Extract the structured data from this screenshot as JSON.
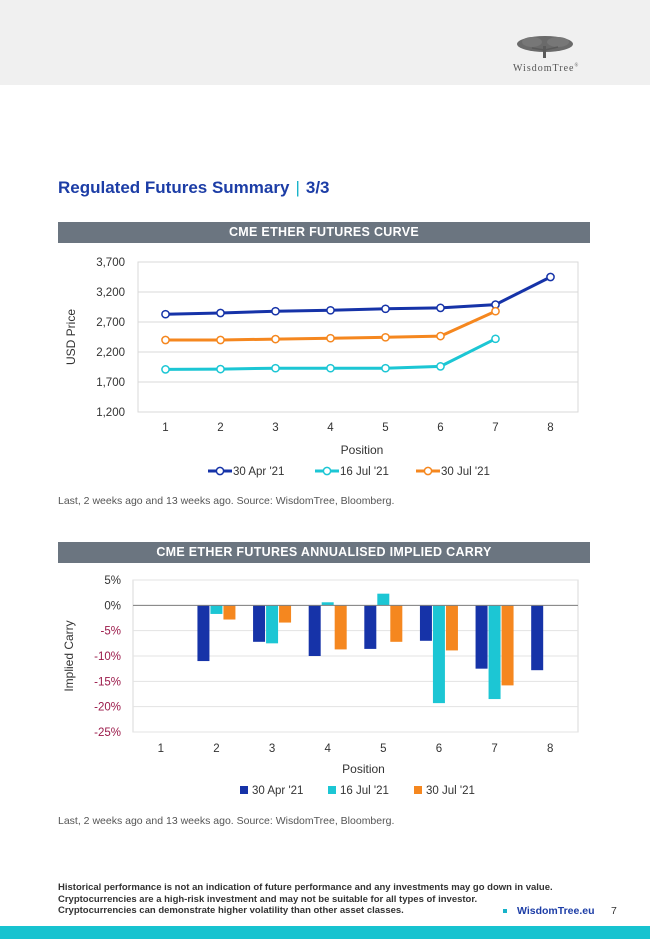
{
  "header": {
    "brand": "WisdomTree",
    "brand_mark": "®"
  },
  "page": {
    "title": "Regulated Futures Summary",
    "title_separator": "|",
    "title_part": "3/3"
  },
  "colors": {
    "series_apr": "#1633a8",
    "series_jul16": "#1cc6d4",
    "series_jul30": "#f5871f",
    "banner": "#6b7580",
    "negative_tick": "#9b1a4a"
  },
  "chart_data": [
    {
      "type": "line",
      "title": "CME ETHER FUTURES CURVE",
      "xlabel": "Position",
      "ylabel": "USD Price",
      "x": [
        1,
        2,
        3,
        4,
        5,
        6,
        7,
        8
      ],
      "ylim": [
        1200,
        3700
      ],
      "yticks": [
        "1,200",
        "1,700",
        "2,200",
        "2,700",
        "3,200",
        "3,700"
      ],
      "ytick_values": [
        1200,
        1700,
        2200,
        2700,
        3200,
        3700
      ],
      "grid": true,
      "legend_position": "bottom",
      "series": [
        {
          "name": "30 Apr '21",
          "color": "#1633a8",
          "values": [
            2830,
            2850,
            2880,
            2895,
            2920,
            2935,
            2990,
            3450
          ]
        },
        {
          "name": "16 Jul '21",
          "color": "#1cc6d4",
          "values": [
            1910,
            1915,
            1930,
            1930,
            1930,
            1960,
            2420,
            null
          ]
        },
        {
          "name": "30 Jul '21",
          "color": "#f5871f",
          "values": [
            2400,
            2400,
            2415,
            2430,
            2445,
            2465,
            2880,
            null
          ]
        }
      ]
    },
    {
      "type": "bar",
      "title": "CME ETHER FUTURES ANNUALISED IMPLIED CARRY",
      "xlabel": "Position",
      "ylabel": "Implied Carry",
      "categories": [
        "1",
        "2",
        "3",
        "4",
        "5",
        "6",
        "7",
        "8"
      ],
      "ylim": [
        -25,
        5
      ],
      "yticks": [
        "5%",
        "0%",
        "-5%",
        "-10%",
        "-15%",
        "-20%",
        "-25%"
      ],
      "ytick_values": [
        5,
        0,
        -5,
        -10,
        -15,
        -20,
        -25
      ],
      "grid": true,
      "legend_position": "bottom",
      "series": [
        {
          "name": "30 Apr '21",
          "color": "#1633a8",
          "values": [
            null,
            -11.0,
            -7.2,
            -10.0,
            -8.6,
            -7.0,
            -12.5,
            -12.8
          ]
        },
        {
          "name": "16 Jul '21",
          "color": "#1cc6d4",
          "values": [
            null,
            -1.7,
            -7.5,
            0.6,
            2.3,
            -19.3,
            -18.5,
            null
          ]
        },
        {
          "name": "30 Jul '21",
          "color": "#f5871f",
          "values": [
            null,
            -2.8,
            -3.4,
            -8.7,
            -7.2,
            -8.9,
            -15.8,
            null
          ]
        }
      ]
    }
  ],
  "notes": {
    "chart1": "Last, 2 weeks ago and 13 weeks ago. Source: WisdomTree, Bloomberg.",
    "chart2": "Last, 2 weeks ago and 13 weeks ago. Source: WisdomTree, Bloomberg."
  },
  "footer": {
    "disclaimer_1": "Historical performance is not an indication of future performance and any investments may go down in value.",
    "disclaimer_2": "Cryptocurrencies are a high-risk investment and may not be suitable for all types of investor.",
    "disclaimer_3": "Cryptocurrencies can demonstrate higher volatility than other asset classes.",
    "website": "WisdomTree.eu",
    "page_number": "7"
  }
}
